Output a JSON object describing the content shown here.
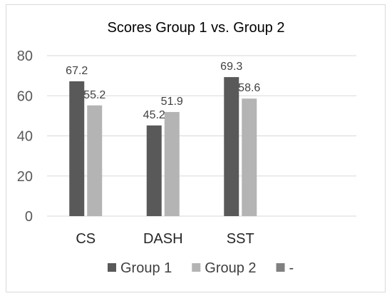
{
  "chart_data": {
    "type": "bar",
    "title": "Scores Group 1 vs. Group 2",
    "categories": [
      "CS",
      "DASH",
      "SST",
      ""
    ],
    "series": [
      {
        "name": "Group 1",
        "values": [
          67.2,
          45.2,
          69.3,
          null
        ],
        "color": "#595959"
      },
      {
        "name": "Group 2",
        "values": [
          55.2,
          51.9,
          58.6,
          null
        ],
        "color": "#b4b4b4"
      },
      {
        "name": "-",
        "values": [
          null,
          null,
          null,
          null
        ],
        "color": "#808080"
      }
    ],
    "yticks": [
      0,
      20,
      40,
      60,
      80
    ],
    "ylim": [
      0,
      80
    ],
    "grid": true,
    "legend": "bottom"
  }
}
